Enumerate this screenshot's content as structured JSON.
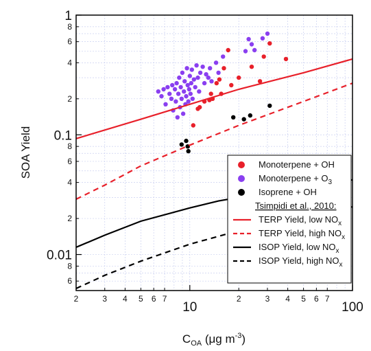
{
  "chart_data": {
    "type": "scatter",
    "title": "",
    "xlabel": "C",
    "xlabel_sub": "OA",
    "xlabel_unit_pre": " (μg m",
    "xlabel_unit_sup": "-3",
    "xlabel_unit_post": ")",
    "ylabel": "SOA Yield",
    "xscale": "log",
    "yscale": "log",
    "xlim": [
      2,
      100
    ],
    "ylim": [
      0.005,
      1
    ],
    "grid": true,
    "legend_position": "lower-right",
    "x_major_ticks": [
      {
        "value": 10,
        "label": "10"
      },
      {
        "value": 100,
        "label": "100"
      }
    ],
    "x_minor_ticks": [
      {
        "value": 2,
        "label": "2"
      },
      {
        "value": 3,
        "label": "3"
      },
      {
        "value": 4,
        "label": "4"
      },
      {
        "value": 5,
        "label": "5"
      },
      {
        "value": 6,
        "label": "6"
      },
      {
        "value": 7,
        "label": "7"
      },
      {
        "value": 20,
        "label": "2"
      },
      {
        "value": 30,
        "label": "3"
      },
      {
        "value": 40,
        "label": "4"
      },
      {
        "value": 50,
        "label": "5"
      },
      {
        "value": 60,
        "label": "6"
      },
      {
        "value": 70,
        "label": "7"
      }
    ],
    "y_major_ticks": [
      {
        "value": 1,
        "label": "1"
      },
      {
        "value": 0.1,
        "label": "0.1"
      },
      {
        "value": 0.01,
        "label": "0.01"
      }
    ],
    "y_minor_ticks": [
      {
        "value": 0.8,
        "label": "8"
      },
      {
        "value": 0.6,
        "label": "6"
      },
      {
        "value": 0.4,
        "label": "4"
      },
      {
        "value": 0.2,
        "label": "2"
      },
      {
        "value": 0.08,
        "label": "8"
      },
      {
        "value": 0.06,
        "label": "6"
      },
      {
        "value": 0.04,
        "label": "4"
      },
      {
        "value": 0.02,
        "label": "2"
      },
      {
        "value": 0.008,
        "label": "8"
      },
      {
        "value": 0.006,
        "label": "6"
      }
    ],
    "colors": {
      "monoterpene_oh": "#e8202a",
      "monoterpene_o3": "#8a3ff0",
      "isoprene_oh": "#000000",
      "terp_line": "#e8202a",
      "isop_line": "#000000",
      "grid": "#c9cff0"
    },
    "legend_header": "Tsimpidi et al., 2010:",
    "series": [
      {
        "name": "Monoterpene + OH",
        "kind": "points",
        "color_key": "monoterpene_oh",
        "points": [
          [
            10.5,
            0.12
          ],
          [
            11.2,
            0.165
          ],
          [
            11.5,
            0.17
          ],
          [
            12.3,
            0.19
          ],
          [
            13.2,
            0.195
          ],
          [
            13.5,
            0.22
          ],
          [
            13.8,
            0.2
          ],
          [
            14.6,
            0.27
          ],
          [
            15.2,
            0.29
          ],
          [
            15.6,
            0.22
          ],
          [
            16.2,
            0.36
          ],
          [
            17.2,
            0.51
          ],
          [
            18.0,
            0.26
          ],
          [
            20.0,
            0.3
          ],
          [
            24.0,
            0.37
          ],
          [
            27.0,
            0.28
          ],
          [
            28.5,
            0.45
          ],
          [
            31.0,
            0.58
          ],
          [
            39.0,
            0.43
          ]
        ]
      },
      {
        "name": "Monoterpene + O",
        "name_sub": "3",
        "kind": "points",
        "color_key": "monoterpene_o3",
        "points": [
          [
            6.4,
            0.23
          ],
          [
            6.7,
            0.21
          ],
          [
            6.9,
            0.24
          ],
          [
            7.1,
            0.18
          ],
          [
            7.3,
            0.25
          ],
          [
            7.5,
            0.22
          ],
          [
            7.7,
            0.2
          ],
          [
            7.8,
            0.26
          ],
          [
            7.9,
            0.16
          ],
          [
            8.1,
            0.24
          ],
          [
            8.2,
            0.19
          ],
          [
            8.3,
            0.27
          ],
          [
            8.4,
            0.14
          ],
          [
            8.5,
            0.22
          ],
          [
            8.6,
            0.3
          ],
          [
            8.7,
            0.17
          ],
          [
            8.8,
            0.25
          ],
          [
            8.9,
            0.2
          ],
          [
            9.0,
            0.33
          ],
          [
            9.1,
            0.15
          ],
          [
            9.2,
            0.23
          ],
          [
            9.3,
            0.28
          ],
          [
            9.4,
            0.18
          ],
          [
            9.5,
            0.21
          ],
          [
            9.6,
            0.36
          ],
          [
            9.7,
            0.26
          ],
          [
            9.8,
            0.19
          ],
          [
            9.9,
            0.24
          ],
          [
            10.0,
            0.31
          ],
          [
            10.1,
            0.22
          ],
          [
            10.2,
            0.27
          ],
          [
            10.3,
            0.35
          ],
          [
            10.4,
            0.2
          ],
          [
            10.6,
            0.29
          ],
          [
            10.8,
            0.25
          ],
          [
            11.0,
            0.38
          ],
          [
            11.2,
            0.3
          ],
          [
            11.4,
            0.23
          ],
          [
            11.6,
            0.33
          ],
          [
            12.0,
            0.37
          ],
          [
            12.3,
            0.27
          ],
          [
            12.6,
            0.32
          ],
          [
            13.0,
            0.3
          ],
          [
            13.3,
            0.36
          ],
          [
            13.6,
            0.28
          ],
          [
            14.5,
            0.4
          ],
          [
            15.0,
            0.33
          ],
          [
            16.0,
            0.45
          ],
          [
            22.0,
            0.5
          ],
          [
            23.0,
            0.63
          ],
          [
            24.0,
            0.57
          ],
          [
            25.0,
            0.51
          ],
          [
            28.0,
            0.64
          ],
          [
            30.0,
            0.7
          ]
        ]
      },
      {
        "name": "Isoprene + OH",
        "kind": "points",
        "color_key": "isoprene_oh",
        "points": [
          [
            8.9,
            0.083
          ],
          [
            9.5,
            0.089
          ],
          [
            9.7,
            0.08
          ],
          [
            9.8,
            0.073
          ],
          [
            18.5,
            0.14
          ],
          [
            21.5,
            0.135
          ],
          [
            23.5,
            0.145
          ],
          [
            31.0,
            0.175
          ]
        ]
      },
      {
        "name": "TERP Yield, low NO",
        "name_sub": "x",
        "kind": "line",
        "dash": false,
        "color_key": "terp_line",
        "points": [
          [
            2,
            0.093
          ],
          [
            5,
            0.135
          ],
          [
            10,
            0.18
          ],
          [
            20,
            0.24
          ],
          [
            50,
            0.33
          ],
          [
            100,
            0.43
          ]
        ]
      },
      {
        "name": "TERP Yield, high NO",
        "name_sub": "x",
        "kind": "line",
        "dash": true,
        "color_key": "terp_line",
        "points": [
          [
            2,
            0.029
          ],
          [
            3,
            0.038
          ],
          [
            5,
            0.055
          ],
          [
            10,
            0.082
          ],
          [
            20,
            0.12
          ],
          [
            50,
            0.19
          ],
          [
            100,
            0.27
          ]
        ]
      },
      {
        "name": "ISOP Yield, low NO",
        "name_sub": "x",
        "kind": "line",
        "dash": false,
        "color_key": "isop_line",
        "points": [
          [
            2,
            0.0115
          ],
          [
            3,
            0.0145
          ],
          [
            5,
            0.019
          ],
          [
            10,
            0.0245
          ],
          [
            15,
            0.028
          ],
          [
            20,
            0.03
          ],
          [
            30,
            0.034
          ],
          [
            50,
            0.038
          ],
          [
            100,
            0.042
          ]
        ]
      },
      {
        "name": "ISOP Yield, high NO",
        "name_sub": "x",
        "kind": "line",
        "dash": true,
        "color_key": "isop_line",
        "points": [
          [
            2,
            0.0052
          ],
          [
            3,
            0.0067
          ],
          [
            5,
            0.0088
          ],
          [
            10,
            0.0122
          ],
          [
            20,
            0.0158
          ],
          [
            30,
            0.018
          ],
          [
            50,
            0.021
          ],
          [
            100,
            0.025
          ]
        ]
      }
    ]
  }
}
